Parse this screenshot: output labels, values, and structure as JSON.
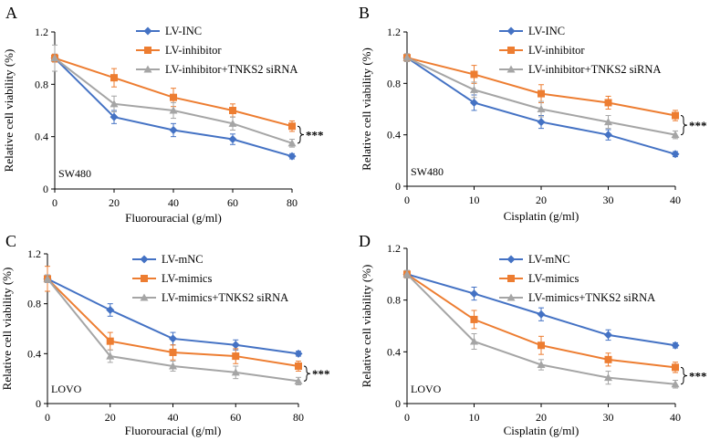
{
  "colors": {
    "blue": "#4472C4",
    "orange": "#ED7D31",
    "gray": "#A5A5A5",
    "axis": "#000000"
  },
  "chart_data": [
    {
      "type": "line",
      "panel_label": "A",
      "cell_line": "SW480",
      "xlabel": "Fluorouracial (g/ml)",
      "ylabel": "Relative cell viability (%)",
      "x": [
        0,
        20,
        40,
        60,
        80
      ],
      "xticks": [
        "0",
        "20",
        "40",
        "60",
        "80"
      ],
      "ylim": [
        0,
        1.2
      ],
      "yticks": [
        "0",
        "0.4",
        "0.8",
        "1.2"
      ],
      "yticks_values": [
        0,
        0.4,
        0.8,
        1.2
      ],
      "significance": "***",
      "legend_position": "top-right",
      "series": [
        {
          "name": "LV-INC",
          "color": "#4472C4",
          "marker": "diamond",
          "values": [
            1.0,
            0.55,
            0.45,
            0.38,
            0.25
          ],
          "errors": [
            0.03,
            0.05,
            0.05,
            0.04,
            0.02
          ]
        },
        {
          "name": "LV-inhibitor",
          "color": "#ED7D31",
          "marker": "square",
          "values": [
            1.0,
            0.85,
            0.7,
            0.6,
            0.48
          ],
          "errors": [
            0.03,
            0.07,
            0.07,
            0.05,
            0.04
          ]
        },
        {
          "name": "LV-inhibitor+TNKS2 siRNA",
          "color": "#A5A5A5",
          "marker": "triangle",
          "values": [
            1.0,
            0.65,
            0.6,
            0.5,
            0.35
          ],
          "errors": [
            0.1,
            0.06,
            0.06,
            0.05,
            0.03
          ]
        }
      ]
    },
    {
      "type": "line",
      "panel_label": "B",
      "cell_line": "SW480",
      "xlabel": "Cisplatin (g/ml)",
      "ylabel": "Relative cell viability (%)",
      "x": [
        0,
        10,
        20,
        30,
        40
      ],
      "xticks": [
        "0",
        "10",
        "20",
        "30",
        "40"
      ],
      "ylim": [
        0,
        1.2
      ],
      "yticks": [
        "0",
        "0.4",
        "0.8",
        "1.2"
      ],
      "yticks_values": [
        0,
        0.4,
        0.8,
        1.2
      ],
      "significance": "***",
      "legend_position": "top-right",
      "series": [
        {
          "name": "LV-INC",
          "color": "#4472C4",
          "marker": "diamond",
          "values": [
            1.0,
            0.65,
            0.5,
            0.4,
            0.25
          ],
          "errors": [
            0.03,
            0.06,
            0.05,
            0.04,
            0.02
          ]
        },
        {
          "name": "LV-inhibitor",
          "color": "#ED7D31",
          "marker": "square",
          "values": [
            1.0,
            0.87,
            0.72,
            0.65,
            0.55
          ],
          "errors": [
            0.03,
            0.07,
            0.07,
            0.05,
            0.04
          ]
        },
        {
          "name": "LV-inhibitor+TNKS2 siRNA",
          "color": "#A5A5A5",
          "marker": "triangle",
          "values": [
            1.0,
            0.75,
            0.6,
            0.5,
            0.4
          ],
          "errors": [
            0.03,
            0.06,
            0.06,
            0.05,
            0.03
          ]
        }
      ]
    },
    {
      "type": "line",
      "panel_label": "C",
      "cell_line": "LOVO",
      "xlabel": "Fluorouracial (g/ml)",
      "ylabel": "Relative cell viability (%)",
      "x": [
        0,
        20,
        40,
        60,
        80
      ],
      "xticks": [
        "0",
        "20",
        "40",
        "60",
        "80"
      ],
      "ylim": [
        0,
        1.2
      ],
      "yticks": [
        "0",
        "0.4",
        "0.8",
        "1.2"
      ],
      "yticks_values": [
        0,
        0.4,
        0.8,
        1.2
      ],
      "significance": "***",
      "legend_position": "top-right",
      "series": [
        {
          "name": "LV-mNC",
          "color": "#4472C4",
          "marker": "diamond",
          "values": [
            1.0,
            0.75,
            0.52,
            0.47,
            0.4
          ],
          "errors": [
            0.03,
            0.05,
            0.05,
            0.04,
            0.02
          ]
        },
        {
          "name": "LV-mimics",
          "color": "#ED7D31",
          "marker": "square",
          "values": [
            1.0,
            0.5,
            0.41,
            0.38,
            0.3
          ],
          "errors": [
            0.1,
            0.07,
            0.06,
            0.06,
            0.04
          ]
        },
        {
          "name": "LV-mimics+TNKS2 siRNA",
          "color": "#A5A5A5",
          "marker": "triangle",
          "values": [
            1.0,
            0.38,
            0.3,
            0.25,
            0.18
          ],
          "errors": [
            0.03,
            0.05,
            0.04,
            0.05,
            0.03
          ]
        }
      ]
    },
    {
      "type": "line",
      "panel_label": "D",
      "cell_line": "LOVO",
      "xlabel": "Cisplatin (g/ml)",
      "ylabel": "Relative cell viability (%)",
      "x": [
        0,
        10,
        20,
        30,
        40
      ],
      "xticks": [
        "0",
        "10",
        "20",
        "30",
        "40"
      ],
      "ylim": [
        0,
        1.2
      ],
      "yticks": [
        "0",
        "0.4",
        "0.8",
        "1.2"
      ],
      "yticks_values": [
        0,
        0.4,
        0.8,
        1.2
      ],
      "significance": "***",
      "legend_position": "top-right",
      "series": [
        {
          "name": "LV-mNC",
          "color": "#4472C4",
          "marker": "diamond",
          "values": [
            1.0,
            0.85,
            0.69,
            0.53,
            0.45
          ],
          "errors": [
            0.02,
            0.05,
            0.05,
            0.04,
            0.02
          ]
        },
        {
          "name": "LV-mimics",
          "color": "#ED7D31",
          "marker": "square",
          "values": [
            1.0,
            0.65,
            0.45,
            0.34,
            0.28
          ],
          "errors": [
            0.02,
            0.07,
            0.07,
            0.05,
            0.04
          ]
        },
        {
          "name": "LV-mimics+TNKS2 siRNA",
          "color": "#A5A5A5",
          "marker": "triangle",
          "values": [
            1.0,
            0.48,
            0.3,
            0.2,
            0.15
          ],
          "errors": [
            0.03,
            0.06,
            0.04,
            0.05,
            0.03
          ]
        }
      ]
    }
  ]
}
